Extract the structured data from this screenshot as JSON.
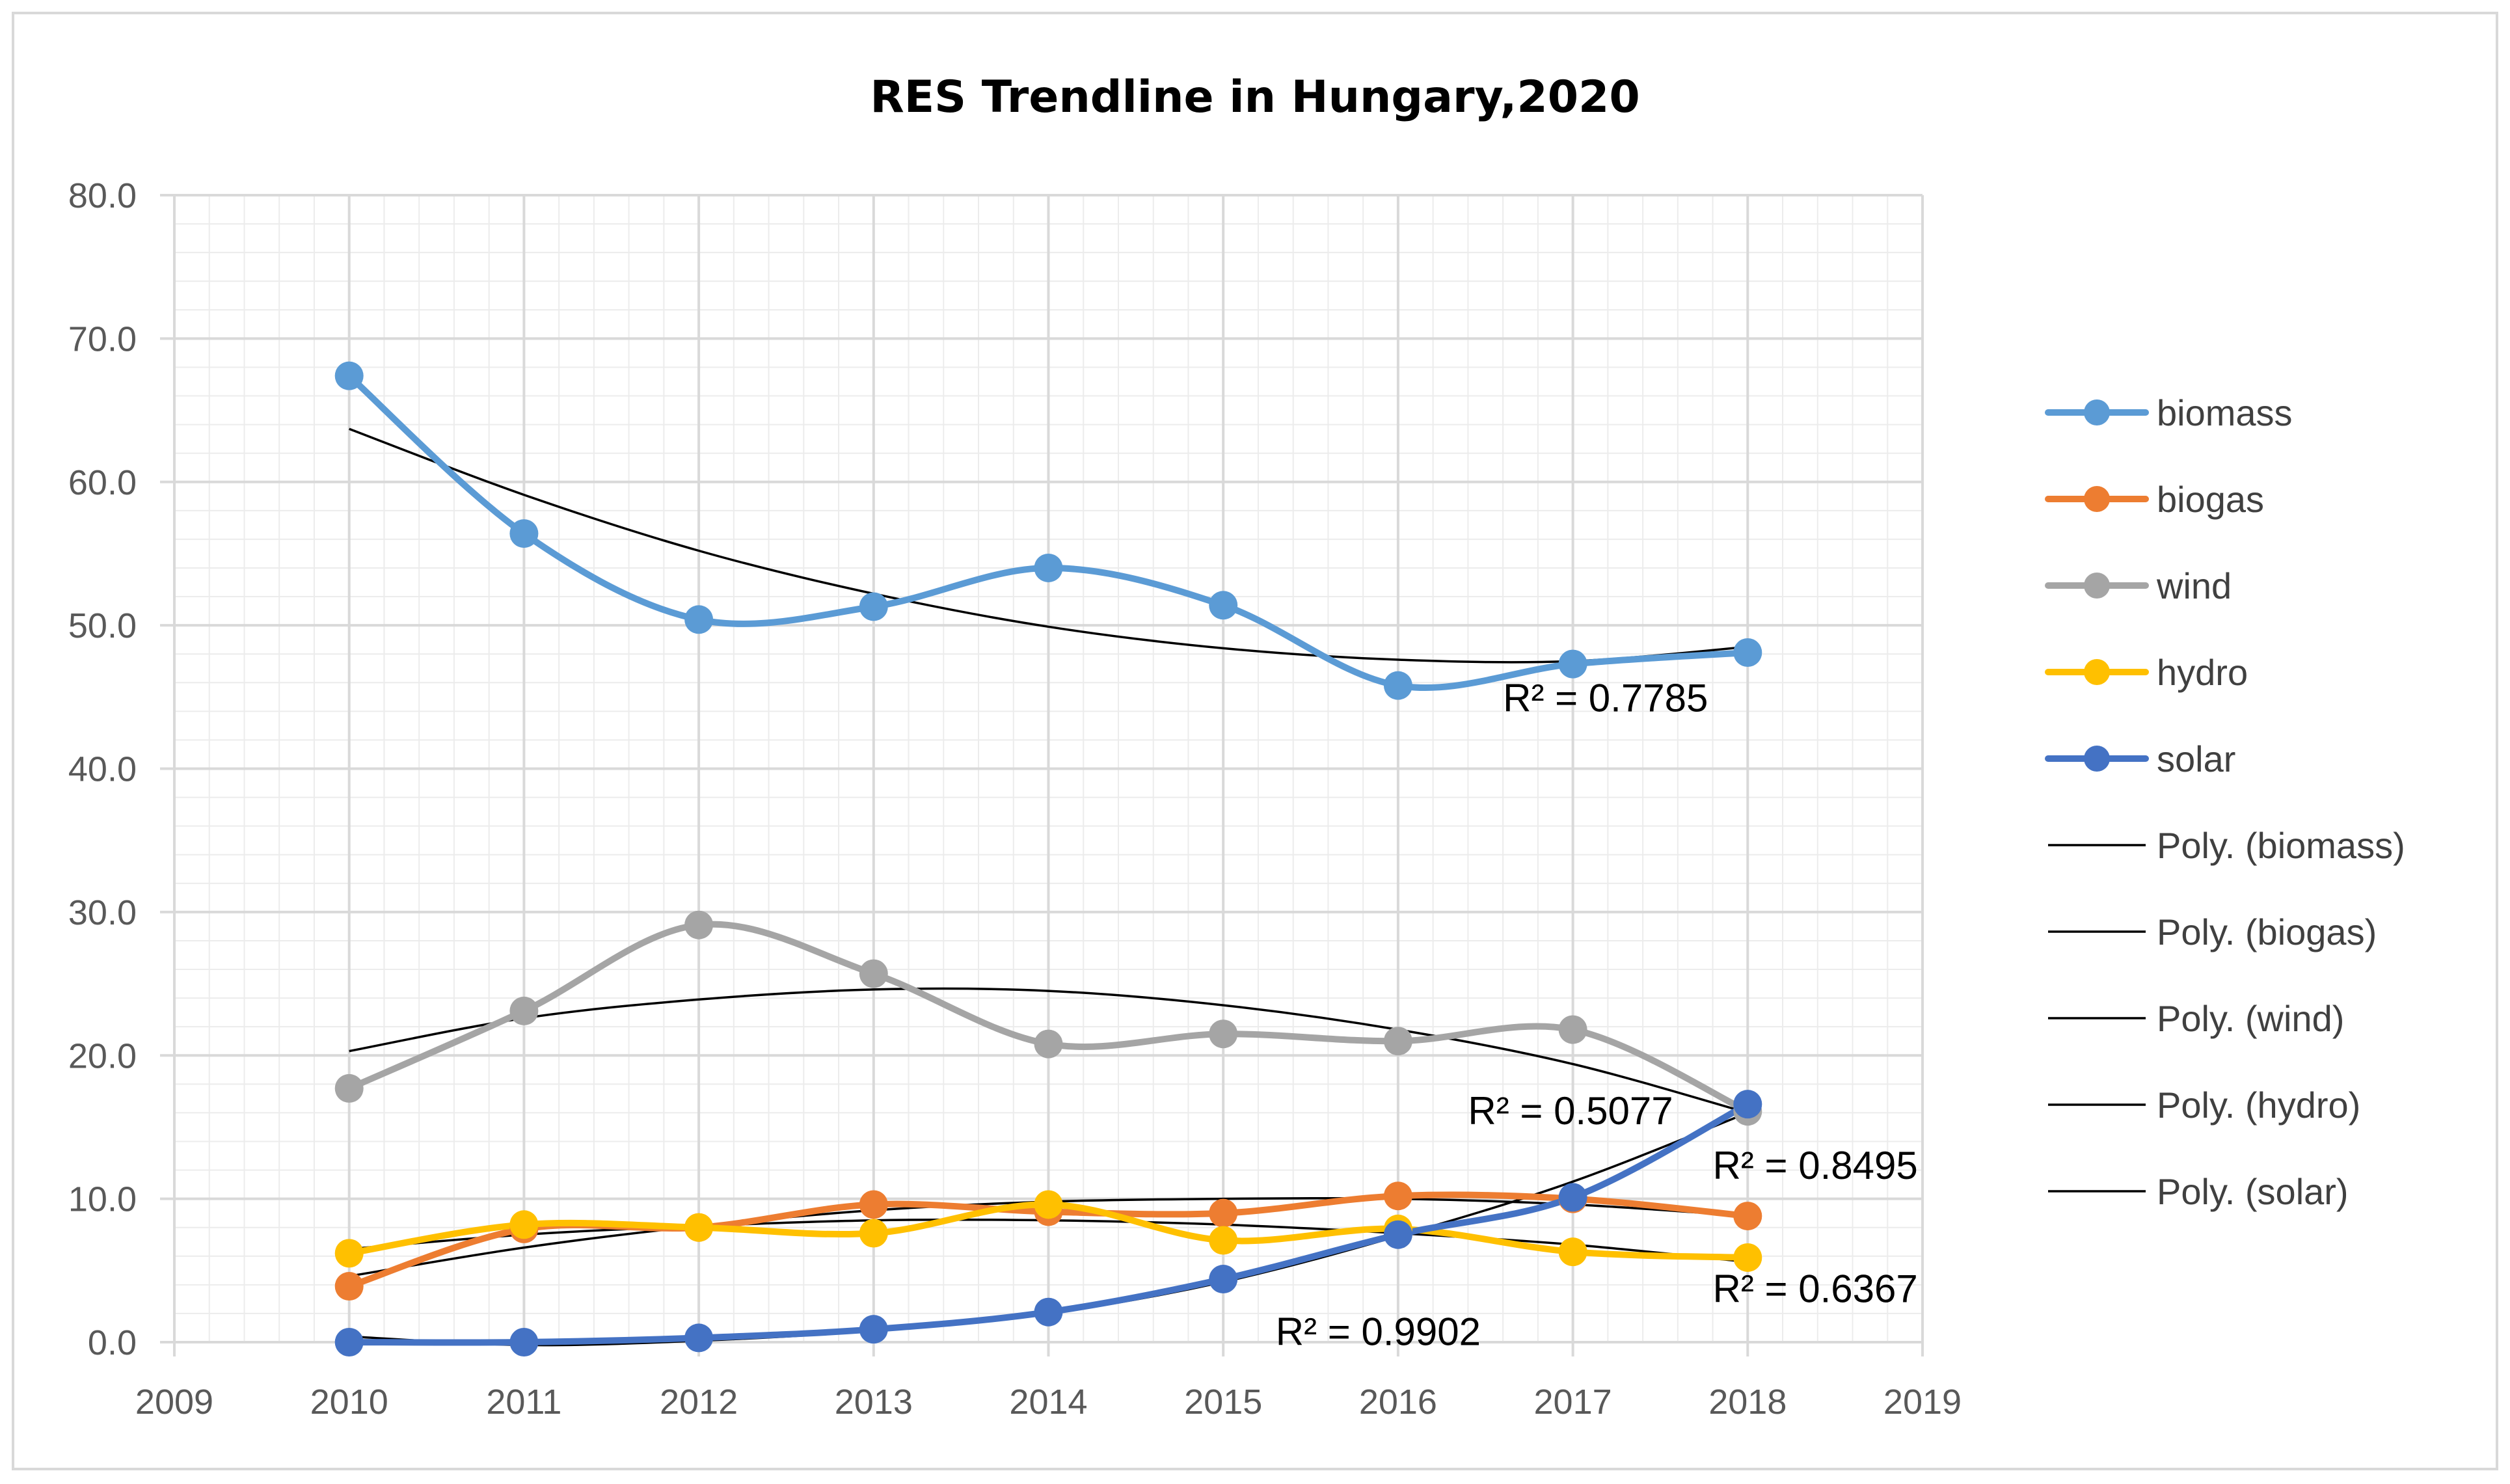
{
  "chart_data": {
    "type": "line",
    "title": "RES Trendline in Hungary,2020",
    "xlabel": "",
    "ylabel": "",
    "xlim": [
      2009,
      2019
    ],
    "ylim": [
      0,
      80
    ],
    "x_ticks": [
      "2009",
      "2010",
      "2011",
      "2012",
      "2013",
      "2014",
      "2015",
      "2016",
      "2017",
      "2018",
      "2019"
    ],
    "y_ticks": [
      "0.0",
      "10.0",
      "20.0",
      "30.0",
      "40.0",
      "50.0",
      "60.0",
      "70.0",
      "80.0"
    ],
    "x": [
      2010,
      2011,
      2012,
      2013,
      2014,
      2015,
      2016,
      2017,
      2018
    ],
    "series": [
      {
        "name": "biomass",
        "color": "#5b9bd5",
        "values": [
          67.4,
          56.4,
          50.4,
          51.3,
          54.0,
          51.4,
          45.8,
          47.3,
          48.1
        ]
      },
      {
        "name": "biogas",
        "color": "#ed7d31",
        "values": [
          3.9,
          7.9,
          8.0,
          9.6,
          9.1,
          9.0,
          10.2,
          10.0,
          8.8
        ]
      },
      {
        "name": "wind",
        "color": "#a5a5a5",
        "values": [
          17.7,
          23.1,
          29.1,
          25.7,
          20.8,
          21.5,
          21.0,
          21.8,
          16.1
        ]
      },
      {
        "name": "hydro",
        "color": "#ffc000",
        "values": [
          6.2,
          8.2,
          8.0,
          7.6,
          9.6,
          7.1,
          7.9,
          6.3,
          5.9
        ]
      },
      {
        "name": "solar",
        "color": "#4472c4",
        "values": [
          0.0,
          0.0,
          0.3,
          0.9,
          2.1,
          4.4,
          7.5,
          10.1,
          16.6
        ]
      }
    ],
    "trendlines": [
      {
        "name": "Poly. (biomass)",
        "type": "polynomial",
        "r2_label": "R² = 0.7785",
        "values": [
          63.7,
          59.1,
          55.2,
          52.2,
          49.9,
          48.4,
          47.6,
          47.5,
          48.5
        ]
      },
      {
        "name": "Poly. (biogas)",
        "type": "polynomial",
        "r2_label": "R² = 0.8495",
        "values": [
          4.6,
          6.6,
          8.1,
          9.2,
          9.8,
          10.0,
          10.0,
          9.6,
          8.8
        ]
      },
      {
        "name": "Poly. (wind)",
        "type": "polynomial",
        "r2_label": "R² = 0.5077",
        "values": [
          20.3,
          22.6,
          23.9,
          24.6,
          24.5,
          23.5,
          21.8,
          19.4,
          16.0
        ]
      },
      {
        "name": "Poly. (hydro)",
        "type": "polynomial",
        "r2_label": "R² = 0.6367",
        "values": [
          6.5,
          7.5,
          8.1,
          8.5,
          8.5,
          8.2,
          7.6,
          6.8,
          5.6
        ]
      },
      {
        "name": "Poly. (solar)",
        "type": "polynomial",
        "r2_label": "R² = 0.9902",
        "values": [
          0.4,
          -0.2,
          0.1,
          0.8,
          2.0,
          4.2,
          7.4,
          11.2,
          16.0
        ]
      }
    ],
    "legend": [
      "biomass",
      "biogas",
      "wind",
      "hydro",
      "solar",
      "Poly. (biomass)",
      "Poly. (biogas)",
      "Poly. (wind)",
      "Poly. (hydro)",
      "Poly. (solar)"
    ],
    "legend_position": "right",
    "grid": true
  }
}
